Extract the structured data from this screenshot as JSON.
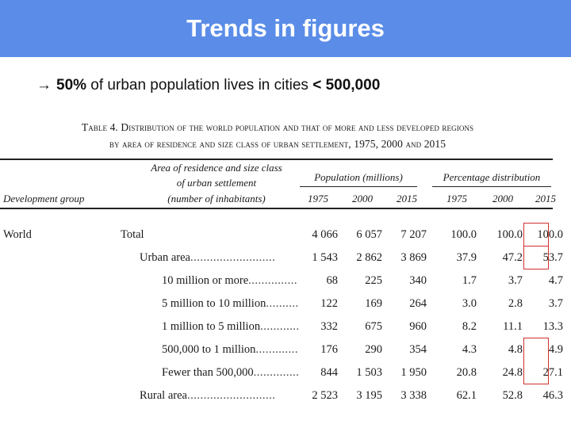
{
  "slide": {
    "title": "Trends in figures",
    "bullet_arrow": "→",
    "bullet_bold1": "50%",
    "bullet_text": " of urban population lives in cities ",
    "bullet_bold2": "< 500,000"
  },
  "table": {
    "caption_line1": "Table 4. Distribution of the world population and that of more and less developed regions",
    "caption_line2": "by area of residence and size class of urban settlement, 1975, 2000 and 2015",
    "col_group_label": "Development group",
    "col_area_label_1": "Area of residence and size class",
    "col_area_label_2": "of urban settlement",
    "col_area_label_3": "(number of inhabitants)",
    "group_population": "Population (millions)",
    "group_percentage": "Percentage distribution",
    "years": [
      "1975",
      "2000",
      "2015",
      "1975",
      "2000",
      "2015"
    ],
    "group_name": "World",
    "rows": [
      {
        "label": "Total",
        "dots": "",
        "values": [
          "4 066",
          "6 057",
          "7 207",
          "100.0",
          "100.0",
          "100.0"
        ]
      },
      {
        "label": "Urban area",
        "dots": "........................................",
        "values": [
          "1 543",
          "2 862",
          "3 869",
          "37.9",
          "47.2",
          "53.7"
        ]
      },
      {
        "label": "10 million or more",
        "dots": "...................",
        "values": [
          "68",
          "225",
          "340",
          "1.7",
          "3.7",
          "4.7"
        ]
      },
      {
        "label": "5 million to 10 million",
        "dots": "..........",
        "values": [
          "122",
          "169",
          "264",
          "3.0",
          "2.8",
          "3.7"
        ]
      },
      {
        "label": "1 million to 5 million",
        "dots": "..............",
        "values": [
          "332",
          "675",
          "960",
          "8.2",
          "11.1",
          "13.3"
        ]
      },
      {
        "label": "500,000 to 1 million",
        "dots": "...............",
        "values": [
          "176",
          "290",
          "354",
          "4.3",
          "4.8",
          "4.9"
        ]
      },
      {
        "label": "Fewer than 500,000",
        "dots": "................",
        "values": [
          "844",
          "1 503",
          "1 950",
          "20.8",
          "24.8",
          "27.1"
        ]
      },
      {
        "label": "Rural area",
        "dots": "........................................",
        "values": [
          "2 523",
          "3 195",
          "3 338",
          "62.1",
          "52.8",
          "46.3"
        ]
      }
    ],
    "highlight_color": "#d03030"
  }
}
